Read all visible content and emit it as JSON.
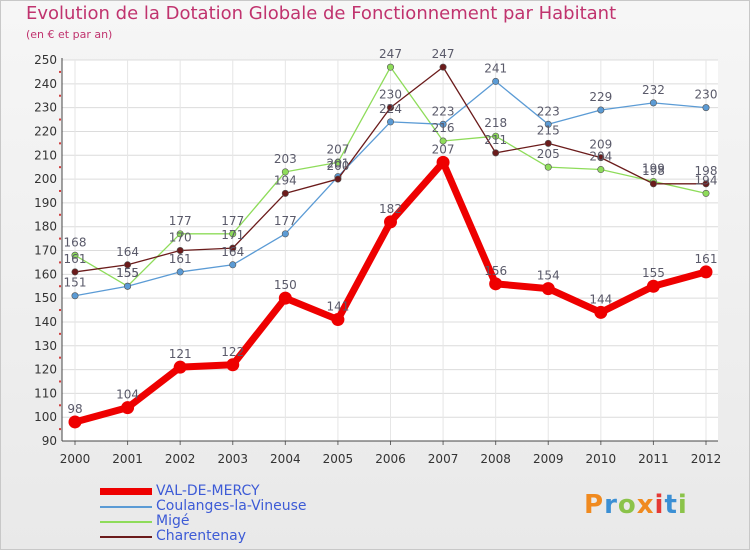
{
  "header": {
    "title": "Evolution de la Dotation Globale de Fonctionnement par Habitant",
    "subtitle": "(en € et par an)"
  },
  "brand": {
    "text": "Proxiti",
    "colors": [
      "#f08a1f",
      "#3b8fd4",
      "#8bc34a",
      "#f08a1f",
      "#e53935",
      "#3b8fd4",
      "#8bc34a"
    ]
  },
  "chart_data": {
    "type": "line",
    "title": "Evolution de la Dotation Globale de Fonctionnement par Habitant",
    "subtitle": "(en € et par an)",
    "xlabel": "",
    "ylabel": "",
    "ylim": [
      90,
      250
    ],
    "yticks": [
      90,
      100,
      110,
      120,
      130,
      140,
      150,
      160,
      170,
      180,
      190,
      200,
      210,
      220,
      230,
      240,
      250
    ],
    "grid": true,
    "legend_position": "bottom-left",
    "categories": [
      "2000",
      "2001",
      "2002",
      "2003",
      "2004",
      "2005",
      "2006",
      "2007",
      "2008",
      "2009",
      "2010",
      "2011",
      "2012"
    ],
    "series": [
      {
        "name": "VAL-DE-MERCY",
        "color": "#ee0000",
        "values": [
          98,
          104,
          121,
          122,
          150,
          141,
          182,
          207,
          156,
          154,
          144,
          155,
          161
        ],
        "labels": [
          "98",
          "104",
          "121",
          "122",
          "150",
          "141",
          "182",
          "207",
          "156",
          "154",
          "144",
          "155",
          "161"
        ]
      },
      {
        "name": "Coulanges-la-Vineuse",
        "color": "#5b9bd5",
        "values": [
          151,
          155,
          161,
          164,
          177,
          201,
          224,
          223,
          241,
          223,
          229,
          232,
          230
        ],
        "labels": [
          "151",
          "155",
          "161",
          "164",
          "177",
          "201",
          "224",
          "223",
          "241",
          "223",
          "229",
          "232",
          "230"
        ]
      },
      {
        "name": "Migé",
        "color": "#8edc5a",
        "values": [
          168,
          155,
          177,
          177,
          203,
          207,
          247,
          216,
          218,
          205,
          204,
          199,
          194
        ],
        "labels": [
          "168",
          "155",
          "177",
          "177",
          "203",
          "207",
          "247",
          "216",
          "218",
          "205",
          "204",
          "199",
          "194"
        ]
      },
      {
        "name": "Charentenay",
        "color": "#6b1b1b",
        "values": [
          161,
          164,
          170,
          171,
          194,
          200,
          230,
          247,
          211,
          215,
          209,
          198,
          198
        ],
        "labels": [
          "161",
          "164",
          "170",
          "171",
          "194",
          "200",
          "230",
          "247",
          "211",
          "215",
          "209",
          "198",
          "198"
        ]
      }
    ]
  }
}
